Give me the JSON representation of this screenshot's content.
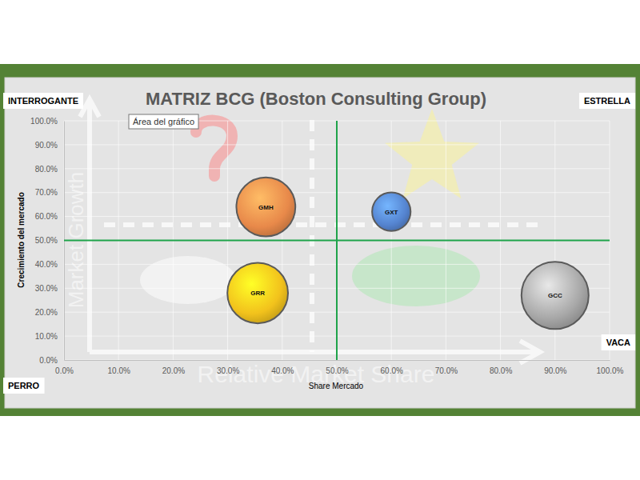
{
  "chart_data": {
    "type": "bubble",
    "title": "MATRIZ BCG (Boston Consulting Group)",
    "x_label": "Share Mercado",
    "y_label": "Crecimiento del mercado",
    "quadrants": {
      "top_left": "INTERROGANTE",
      "top_right": "ESTRELLA",
      "bottom_left": "PERRO",
      "bottom_right": "VACA"
    },
    "tooltip": "Área del gráfico",
    "watermark_x": "Relative Market Share",
    "watermark_y": "Market Growth",
    "labels": [
      "GMH",
      "GXT",
      "GRR",
      "GCC"
    ],
    "x": [
      37,
      60,
      35.5,
      90
    ],
    "values": [
      64,
      62,
      28,
      27
    ],
    "sizes": [
      54,
      23,
      57,
      70
    ],
    "colors": [
      "#e8894a",
      "#5584d0",
      "#f2c21c",
      "#a8a8a8"
    ],
    "reference_lines": {
      "x": 50,
      "y": 50
    },
    "xlim": [
      0,
      100
    ],
    "ylim": [
      0,
      100
    ],
    "xticks": [
      {
        "value": 0,
        "label": "0.0%"
      },
      {
        "value": 10,
        "label": "10.0%"
      },
      {
        "value": 20,
        "label": "20.0%"
      },
      {
        "value": 30,
        "label": "30.0%"
      },
      {
        "value": 40,
        "label": "40.0%"
      },
      {
        "value": 50,
        "label": "50.0%"
      },
      {
        "value": 60,
        "label": "60.0%"
      },
      {
        "value": 70,
        "label": "70.0%"
      },
      {
        "value": 80,
        "label": "80.0%"
      },
      {
        "value": 90,
        "label": "90.0%"
      },
      {
        "value": 100,
        "label": "100.0%"
      }
    ],
    "yticks": [
      {
        "value": 0,
        "label": "0.0%"
      },
      {
        "value": 10,
        "label": "10.0%"
      },
      {
        "value": 20,
        "label": "20.0%"
      },
      {
        "value": 30,
        "label": "30.0%"
      },
      {
        "value": 40,
        "label": "40.0%"
      },
      {
        "value": 50,
        "label": "50.0%"
      },
      {
        "value": 60,
        "label": "60.0%"
      },
      {
        "value": 70,
        "label": "70.0%"
      },
      {
        "value": 80,
        "label": "80.0%"
      },
      {
        "value": 90,
        "label": "90.0%"
      },
      {
        "value": 100,
        "label": "100.0%"
      }
    ],
    "grid": true,
    "data_labels": true
  }
}
